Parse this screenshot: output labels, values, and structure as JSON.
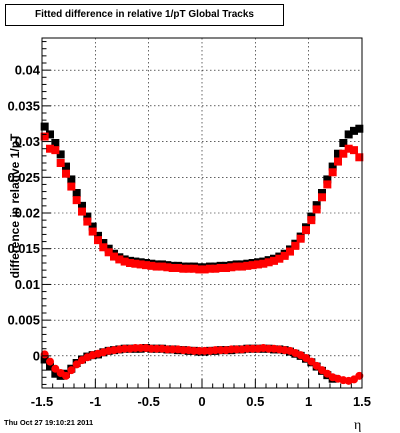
{
  "chart_data": {
    "type": "scatter",
    "title": "Fitted difference in relative 1/pT  Global Tracks",
    "xlabel": "η",
    "ylabel": "difference in relative 1/pT",
    "xlim": [
      -1.5,
      1.5
    ],
    "ylim": [
      -0.0045,
      0.0445
    ],
    "grid": true,
    "x_ticks": [
      -1.5,
      -1,
      -0.5,
      0,
      0.5,
      1,
      1.5
    ],
    "x_tick_labels": [
      "-1.5",
      "-1",
      "-0.5",
      "0",
      "0.5",
      "1",
      "1.5"
    ],
    "y_ticks": [
      0,
      0.005,
      0.01,
      0.015,
      0.02,
      0.025,
      0.03,
      0.035,
      0.04
    ],
    "y_tick_labels": [
      "0",
      "0.005",
      "0.01",
      "0.015",
      "0.02",
      "0.025",
      "0.03",
      "0.035",
      "0.04"
    ],
    "series": [
      {
        "marker": "square",
        "color": "#000000",
        "x": [
          -1.475,
          -1.425,
          -1.375,
          -1.325,
          -1.275,
          -1.225,
          -1.175,
          -1.125,
          -1.075,
          -1.025,
          -0.975,
          -0.925,
          -0.875,
          -0.825,
          -0.775,
          -0.725,
          -0.675,
          -0.625,
          -0.575,
          -0.525,
          -0.475,
          -0.425,
          -0.375,
          -0.325,
          -0.275,
          -0.225,
          -0.175,
          -0.125,
          -0.075,
          -0.025,
          0.025,
          0.075,
          0.125,
          0.175,
          0.225,
          0.275,
          0.325,
          0.375,
          0.425,
          0.475,
          0.525,
          0.575,
          0.625,
          0.675,
          0.725,
          0.775,
          0.825,
          0.875,
          0.925,
          0.975,
          1.025,
          1.075,
          1.125,
          1.175,
          1.225,
          1.275,
          1.325,
          1.375,
          1.425,
          1.475
        ],
        "y": [
          0.0321,
          0.031,
          0.0298,
          0.0282,
          0.0265,
          0.0247,
          0.0228,
          0.021,
          0.0195,
          0.0181,
          0.0168,
          0.0158,
          0.015,
          0.0143,
          0.0138,
          0.0135,
          0.0133,
          0.0132,
          0.0131,
          0.013,
          0.0129,
          0.0128,
          0.0128,
          0.0127,
          0.0126,
          0.0126,
          0.0125,
          0.0125,
          0.0125,
          0.0124,
          0.0124,
          0.0125,
          0.0125,
          0.0126,
          0.0126,
          0.0127,
          0.0128,
          0.0128,
          0.0129,
          0.013,
          0.0131,
          0.0132,
          0.0134,
          0.0136,
          0.0139,
          0.0143,
          0.0149,
          0.0157,
          0.0167,
          0.018,
          0.0195,
          0.0211,
          0.0228,
          0.0247,
          0.0265,
          0.0283,
          0.0298,
          0.031,
          0.0315,
          0.0318
        ]
      },
      {
        "marker": "square",
        "color": "#ff0000",
        "x": [
          -1.475,
          -1.425,
          -1.375,
          -1.325,
          -1.275,
          -1.225,
          -1.175,
          -1.125,
          -1.075,
          -1.025,
          -0.975,
          -0.925,
          -0.875,
          -0.825,
          -0.775,
          -0.725,
          -0.675,
          -0.625,
          -0.575,
          -0.525,
          -0.475,
          -0.425,
          -0.375,
          -0.325,
          -0.275,
          -0.225,
          -0.175,
          -0.125,
          -0.075,
          -0.025,
          0.025,
          0.075,
          0.125,
          0.175,
          0.225,
          0.275,
          0.325,
          0.375,
          0.425,
          0.475,
          0.525,
          0.575,
          0.625,
          0.675,
          0.725,
          0.775,
          0.825,
          0.875,
          0.925,
          0.975,
          1.025,
          1.075,
          1.125,
          1.175,
          1.225,
          1.275,
          1.325,
          1.375,
          1.425,
          1.475
        ],
        "y": [
          0.0307,
          0.029,
          0.0288,
          0.027,
          0.0255,
          0.0237,
          0.0218,
          0.0202,
          0.0188,
          0.0174,
          0.0162,
          0.0152,
          0.0145,
          0.0139,
          0.0135,
          0.0132,
          0.013,
          0.0129,
          0.0128,
          0.0127,
          0.0126,
          0.0125,
          0.0125,
          0.0124,
          0.0123,
          0.0123,
          0.0122,
          0.0122,
          0.0122,
          0.0121,
          0.0121,
          0.0122,
          0.0122,
          0.0123,
          0.0123,
          0.0124,
          0.0125,
          0.0125,
          0.0126,
          0.0127,
          0.0128,
          0.0129,
          0.0131,
          0.0133,
          0.0136,
          0.014,
          0.0146,
          0.0154,
          0.0164,
          0.0176,
          0.019,
          0.0205,
          0.0222,
          0.024,
          0.0257,
          0.0272,
          0.0283,
          0.029,
          0.0288,
          0.0278
        ]
      },
      {
        "marker": "square",
        "color": "#000000",
        "x": [
          -1.475,
          -1.425,
          -1.375,
          -1.325,
          -1.275,
          -1.225,
          -1.175,
          -1.125,
          -1.075,
          -1.025,
          -0.975,
          -0.925,
          -0.875,
          -0.825,
          -0.775,
          -0.725,
          -0.675,
          -0.625,
          -0.575,
          -0.525,
          -0.475,
          -0.425,
          -0.375,
          -0.325,
          -0.275,
          -0.225,
          -0.175,
          -0.125,
          -0.075,
          -0.025,
          0.025,
          0.075,
          0.125,
          0.175,
          0.225,
          0.275,
          0.325,
          0.375,
          0.425,
          0.475,
          0.525,
          0.575,
          0.625,
          0.675,
          0.725,
          0.775,
          0.825,
          0.875,
          0.925,
          0.975,
          1.025,
          1.075,
          1.125,
          1.175,
          1.225
        ],
        "y": [
          -0.0005,
          -0.0015,
          -0.0025,
          -0.0028,
          -0.0025,
          -0.0018,
          -0.001,
          -0.0005,
          -0.0001,
          0.0001,
          0.0002,
          0.0005,
          0.0007,
          0.0008,
          0.0009,
          0.001,
          0.001,
          0.001,
          0.001,
          0.0011,
          0.001,
          0.001,
          0.001,
          0.0009,
          0.0009,
          0.0008,
          0.0008,
          0.0007,
          0.0007,
          0.0006,
          0.0006,
          0.0007,
          0.0007,
          0.0008,
          0.0008,
          0.0008,
          0.0009,
          0.0009,
          0.001,
          0.001,
          0.001,
          0.001,
          0.001,
          0.0009,
          0.0009,
          0.0008,
          0.0006,
          0.0003,
          0.0,
          -0.0004,
          -0.0009,
          -0.0015,
          -0.0021,
          -0.0027,
          -0.0032
        ]
      },
      {
        "marker": "circle",
        "color": "#ff0000",
        "x": [
          -1.475,
          -1.425,
          -1.375,
          -1.325,
          -1.275,
          -1.225,
          -1.175,
          -1.125,
          -1.075,
          -1.025,
          -0.975,
          -0.925,
          -0.875,
          -0.825,
          -0.775,
          -0.725,
          -0.675,
          -0.625,
          -0.575,
          -0.525,
          -0.475,
          -0.425,
          -0.375,
          -0.325,
          -0.275,
          -0.225,
          -0.175,
          -0.125,
          -0.075,
          -0.025,
          0.025,
          0.075,
          0.125,
          0.175,
          0.225,
          0.275,
          0.325,
          0.375,
          0.425,
          0.475,
          0.525,
          0.575,
          0.625,
          0.675,
          0.725,
          0.775,
          0.825,
          0.875,
          0.925,
          0.975,
          1.025,
          1.075,
          1.125,
          1.175,
          1.225,
          1.275,
          1.325,
          1.375,
          1.425,
          1.475
        ],
        "y": [
          0.0002,
          -0.0008,
          -0.0018,
          -0.0024,
          -0.0028,
          -0.002,
          -0.0012,
          -0.0006,
          -0.0002,
          0.0001,
          0.0003,
          0.0005,
          0.0007,
          0.0008,
          0.0009,
          0.001,
          0.001,
          0.0011,
          0.0011,
          0.0011,
          0.001,
          0.001,
          0.001,
          0.0009,
          0.0009,
          0.0009,
          0.0008,
          0.0008,
          0.0007,
          0.0007,
          0.0007,
          0.0007,
          0.0008,
          0.0008,
          0.0008,
          0.0009,
          0.0009,
          0.0009,
          0.001,
          0.001,
          0.001,
          0.0011,
          0.001,
          0.001,
          0.0009,
          0.0008,
          0.0007,
          0.0004,
          0.0001,
          -0.0003,
          -0.0008,
          -0.0014,
          -0.002,
          -0.0025,
          -0.003,
          -0.0032,
          -0.0034,
          -0.0035,
          -0.0033,
          -0.0028
        ]
      }
    ]
  },
  "footer": {
    "timestamp": "Thu Oct 27 19:10:21 2011"
  }
}
